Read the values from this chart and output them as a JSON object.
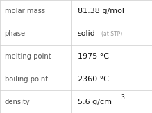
{
  "rows": [
    {
      "label": "molar mass",
      "value": "81.38 g/mol",
      "type": "plain"
    },
    {
      "label": "phase",
      "value": "solid",
      "suffix": "(at STP)",
      "type": "suffix"
    },
    {
      "label": "melting point",
      "value": "1975 °C",
      "type": "plain"
    },
    {
      "label": "boiling point",
      "value": "2360 °C",
      "type": "plain"
    },
    {
      "label": "density",
      "value": "5.6 g/cm",
      "superscript": "3",
      "type": "super"
    }
  ],
  "col_split": 0.47,
  "background_color": "#ffffff",
  "line_color": "#cccccc",
  "label_color": "#555555",
  "value_color": "#111111",
  "suffix_color": "#999999",
  "label_fontsize": 7.2,
  "value_fontsize": 8.0,
  "suffix_fontsize": 5.5,
  "super_fontsize": 5.5
}
